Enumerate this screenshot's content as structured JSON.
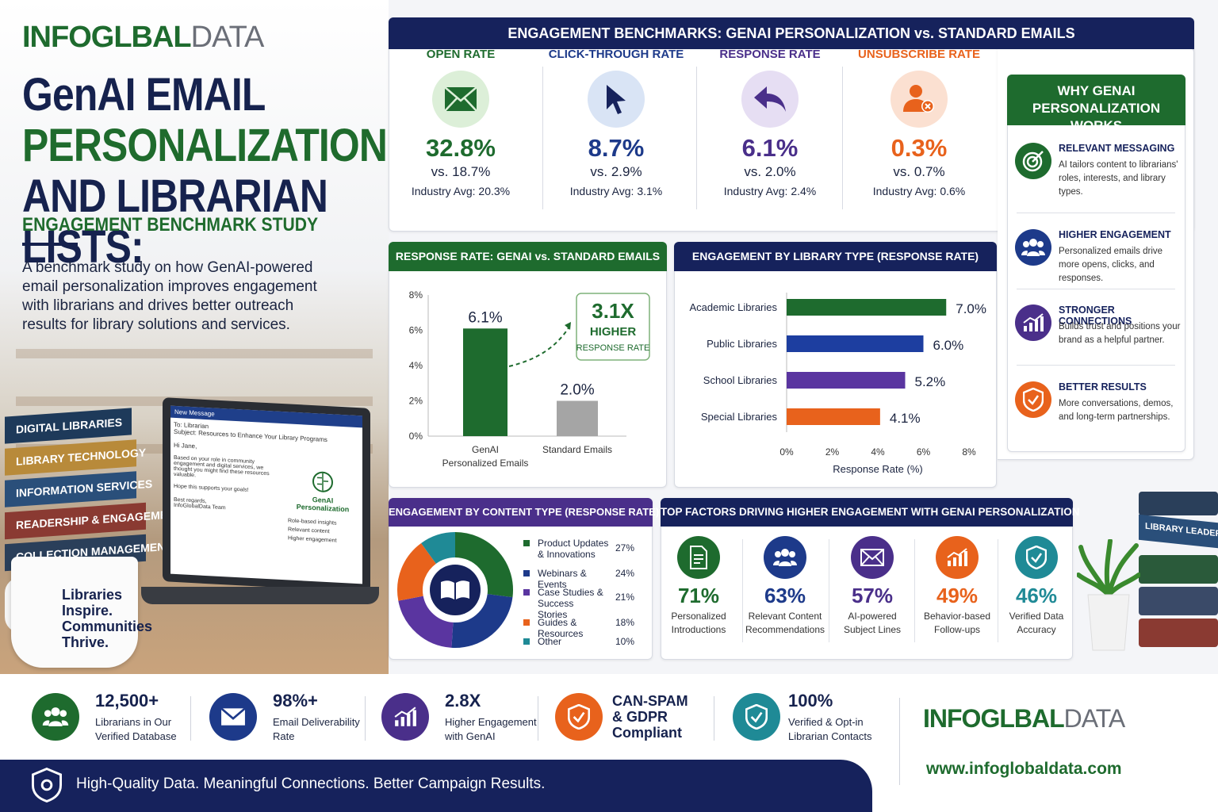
{
  "brand": {
    "name_a": "INFOGL",
    "name_b": "BAL",
    "name_c": "DATA",
    "url": "www.infoglobaldata.com",
    "color_green": "#1e6b2e",
    "color_navy": "#16225c"
  },
  "hero": {
    "title_line1": "GenAI EMAIL",
    "title_line2": "PERSONALIZATION",
    "title_line3": "AND LIBRARIAN LISTS:",
    "subtitle": "ENGAGEMENT BENCHMARK STUDY",
    "description": "A benchmark study on how GenAI-powered email personalization improves engagement with librarians and drives better outreach results for library solutions and services."
  },
  "scene": {
    "books": [
      "DIGITAL LIBRARIES",
      "LIBRARY TECHNOLOGY",
      "INFORMATION SERVICES",
      "READERSHIP & ENGAGEMENT",
      "COLLECTION MANAGEMENT"
    ],
    "right_books": [
      "LIBRARY LEADERSHIP"
    ],
    "mug_text": [
      "Libraries",
      "Inspire.",
      "Communities",
      "Thrive."
    ],
    "email": {
      "title": "New Message",
      "to": "To: Librarian",
      "subject": "Subject: Resources to Enhance Your Library Programs",
      "greeting": "Hi Jane,",
      "body": "Based on your role in community engagement and digital services, we thought you might find these resources valuable.",
      "closing": "Hope this supports your goals!",
      "signoff1": "Best regards,",
      "signoff2": "InfoGlobalData Team",
      "badge_title": "GenAI Personalization",
      "badge_items": [
        "Role-based insights",
        "Relevant content",
        "Higher engagement"
      ]
    }
  },
  "benchmarks": {
    "title": "ENGAGEMENT BENCHMARKS: GENAI PERSONALIZATION vs. STANDARD EMAILS",
    "kpis": [
      {
        "label": "OPEN RATE",
        "value": "32.8%",
        "vs": "vs. 18.7%",
        "industry": "Industry Avg: 20.3%",
        "color": "#1e6b2e",
        "icon": "envelope-icon"
      },
      {
        "label": "CLICK-THROUGH RATE",
        "value": "8.7%",
        "vs": "vs. 2.9%",
        "industry": "Industry Avg: 3.1%",
        "color": "#1d3a8a",
        "icon": "cursor-icon"
      },
      {
        "label": "RESPONSE RATE",
        "value": "6.1%",
        "vs": "vs. 2.0%",
        "industry": "Industry Avg: 2.4%",
        "color": "#4a2f8a",
        "icon": "reply-icon"
      },
      {
        "label": "UNSUBSCRIBE RATE",
        "value": "0.3%",
        "vs": "vs. 0.7%",
        "industry": "Industry Avg: 0.6%",
        "color": "#e8621c",
        "icon": "user-remove-icon"
      }
    ]
  },
  "why": {
    "title": "WHY GENAI PERSONALIZATION WORKS",
    "items": [
      {
        "title": "RELEVANT MESSAGING",
        "text": "AI tailors content to librarians' roles, interests, and library types.",
        "color": "#1e6b2e",
        "icon": "target-icon"
      },
      {
        "title": "HIGHER ENGAGEMENT",
        "text": "Personalized emails drive more opens, clicks, and responses.",
        "color": "#1d3a8a",
        "icon": "group-icon"
      },
      {
        "title": "STRONGER CONNECTIONS",
        "text": "Builds trust and positions your brand as a helpful partner.",
        "color": "#4a2f8a",
        "icon": "growth-chart-icon"
      },
      {
        "title": "BETTER RESULTS",
        "text": "More conversations, demos, and long-term partnerships.",
        "color": "#e8621c",
        "icon": "shield-check-icon"
      }
    ]
  },
  "chart_data": [
    {
      "type": "bar",
      "title": "RESPONSE RATE: GENAI vs. STANDARD EMAILS",
      "categories": [
        "GenAI Personalized Emails",
        "Standard Emails"
      ],
      "values": [
        6.1,
        2.0
      ],
      "value_labels": [
        "6.1%",
        "2.0%"
      ],
      "colors": [
        "#1e6b2e",
        "#a5a5a5"
      ],
      "ylim": [
        0,
        8
      ],
      "yticks": [
        "0%",
        "2%",
        "4%",
        "6%",
        "8%"
      ],
      "callout": {
        "value": "3.1X",
        "line1": "HIGHER",
        "line2": "RESPONSE RATE"
      }
    },
    {
      "type": "bar",
      "orientation": "horizontal",
      "title": "ENGAGEMENT BY LIBRARY TYPE (RESPONSE RATE)",
      "categories": [
        "Academic Libraries",
        "Public Libraries",
        "School Libraries",
        "Special Libraries"
      ],
      "values": [
        7.0,
        6.0,
        5.2,
        4.1
      ],
      "value_labels": [
        "7.0%",
        "6.0%",
        "5.2%",
        "4.1%"
      ],
      "colors": [
        "#1e6b2e",
        "#1d3ea0",
        "#5a35a0",
        "#e8621c"
      ],
      "xlim": [
        0,
        8
      ],
      "xticks": [
        "0%",
        "2%",
        "4%",
        "6%",
        "8%"
      ],
      "xlabel": "Response Rate (%)"
    },
    {
      "type": "pie",
      "donut": true,
      "title": "ENGAGEMENT BY CONTENT TYPE (RESPONSE RATE)",
      "labels": [
        "Product Updates & Innovations",
        "Webinars & Events",
        "Case Studies & Success Stories",
        "Guides & Resources",
        "Other"
      ],
      "values": [
        27,
        24,
        21,
        18,
        10
      ],
      "value_labels": [
        "27%",
        "24%",
        "21%",
        "18%",
        "10%"
      ],
      "colors": [
        "#1e6b2e",
        "#1d3a8a",
        "#5a35a0",
        "#e8621c",
        "#1f8a96"
      ],
      "center_icon": "book-icon"
    }
  ],
  "factors": {
    "title": "TOP FACTORS DRIVING HIGHER ENGAGEMENT WITH GENAI PERSONALIZATION",
    "items": [
      {
        "value": "71%",
        "label": "Personalized Introductions",
        "color": "#1e6b2e",
        "icon": "document-icon"
      },
      {
        "value": "63%",
        "label": "Relevant Content Recommendations",
        "color": "#1d3a8a",
        "icon": "group-icon"
      },
      {
        "value": "57%",
        "label": "AI-powered Subject Lines",
        "color": "#4a2f8a",
        "icon": "envelope-icon"
      },
      {
        "value": "49%",
        "label": "Behavior-based Follow-ups",
        "color": "#e8621c",
        "icon": "growth-chart-icon"
      },
      {
        "value": "46%",
        "label": "Verified Data Accuracy",
        "color": "#1f8a96",
        "icon": "shield-check-icon"
      }
    ]
  },
  "stats": [
    {
      "value": "12,500+",
      "label1": "Librarians in Our",
      "label2": "Verified Database",
      "color": "#1e6b2e",
      "icon": "group-icon"
    },
    {
      "value": "98%+",
      "label1": "Email Deliverability",
      "label2": "Rate",
      "color": "#1d3a8a",
      "icon": "envelope-icon"
    },
    {
      "value": "2.8X",
      "label1": "Higher Engagement",
      "label2": "with GenAI",
      "color": "#4a2f8a",
      "icon": "growth-chart-icon"
    },
    {
      "value": "CAN-SPAM",
      "value2": "& GDPR",
      "value3": "Compliant",
      "color": "#e8621c",
      "icon": "shield-check-icon"
    },
    {
      "value": "100%",
      "label1": "Verified & Opt-in",
      "label2": "Librarian Contacts",
      "color": "#1f8a96",
      "icon": "shield-check-icon"
    }
  ],
  "footer": {
    "tagline": "High-Quality Data. Meaningful Connections. Better Campaign Results."
  }
}
